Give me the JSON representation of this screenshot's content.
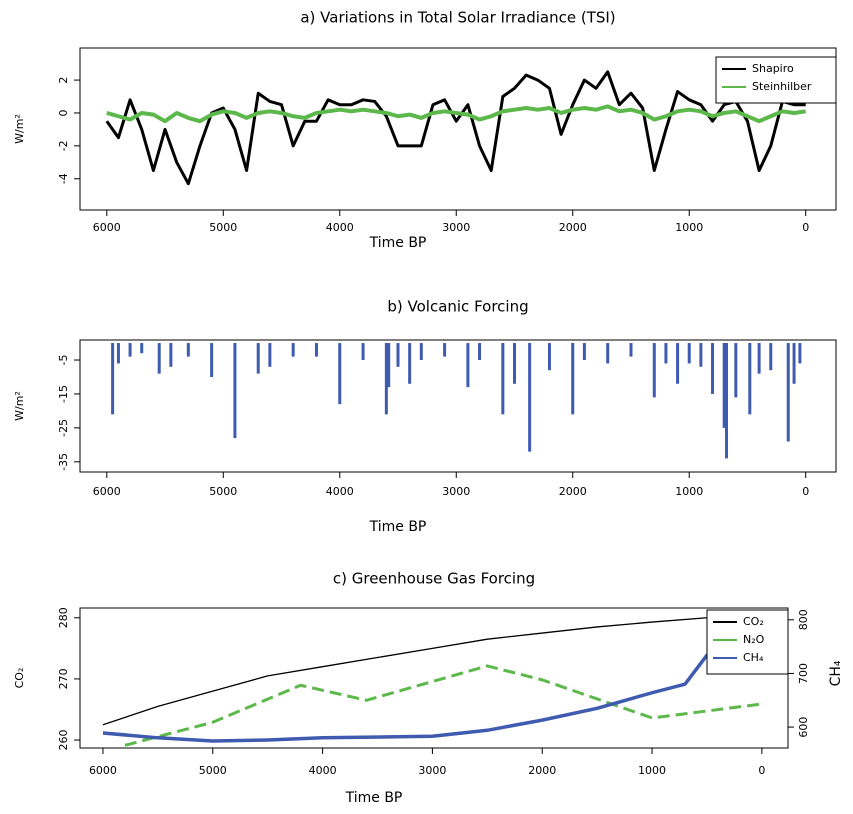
{
  "chart_data": [
    {
      "type": "line",
      "title": "a) Variations in Total Solar Irradiance (TSI)",
      "xlabel": "Time BP",
      "ylabel": "W/m²",
      "xlim": [
        6230,
        -260
      ],
      "ylim": [
        -5.9,
        3.95
      ],
      "xticks": [
        6000,
        5000,
        4000,
        3000,
        2000,
        1000,
        0
      ],
      "yticks": [
        -4,
        -2,
        0,
        2
      ],
      "legend": "upper right",
      "x": [
        6000,
        5900,
        5800,
        5700,
        5600,
        5500,
        5400,
        5300,
        5200,
        5100,
        5000,
        4900,
        4800,
        4700,
        4600,
        4500,
        4400,
        4300,
        4200,
        4100,
        4000,
        3900,
        3800,
        3700,
        3600,
        3500,
        3400,
        3300,
        3200,
        3100,
        3000,
        2900,
        2800,
        2700,
        2600,
        2500,
        2400,
        2300,
        2200,
        2100,
        2000,
        1900,
        1800,
        1700,
        1600,
        1500,
        1400,
        1300,
        1200,
        1100,
        1000,
        900,
        800,
        700,
        600,
        500,
        400,
        300,
        200,
        100,
        0
      ],
      "series": [
        {
          "name": "Shapiro",
          "color": "#000000",
          "values": [
            -0.5,
            -1.5,
            0.8,
            -1,
            -3.5,
            -1,
            -3,
            -4.3,
            -2,
            0,
            0.3,
            -1,
            -3.5,
            1.2,
            0.7,
            0.5,
            -2,
            -0.5,
            -0.5,
            0.8,
            0.5,
            0.5,
            0.8,
            0.7,
            -0.2,
            -2,
            -2,
            -2,
            0.5,
            0.8,
            -0.5,
            0.5,
            -2,
            -3.5,
            1,
            1.5,
            2.3,
            2,
            1.5,
            -1.3,
            0.5,
            2,
            1.5,
            2.5,
            0.5,
            1.2,
            0.3,
            -3.5,
            -1,
            1.3,
            0.8,
            0.5,
            -0.5,
            0.5,
            0.7,
            -0.5,
            -3.5,
            -2,
            0.7,
            0.5,
            0.5
          ]
        },
        {
          "name": "Steinhilber",
          "color": "#5cb84a",
          "values": [
            0,
            -0.2,
            -0.4,
            0,
            -0.1,
            -0.5,
            0,
            -0.3,
            -0.5,
            -0.1,
            0.1,
            0,
            -0.3,
            0,
            0.1,
            0,
            -0.2,
            -0.3,
            0,
            0.1,
            0.2,
            0.1,
            0.2,
            0.1,
            0,
            -0.2,
            -0.1,
            -0.3,
            0,
            0.1,
            0,
            -0.1,
            -0.4,
            -0.2,
            0.1,
            0.2,
            0.3,
            0.2,
            0.3,
            0,
            0.2,
            0.3,
            0.2,
            0.4,
            0.1,
            0.2,
            0,
            -0.4,
            -0.2,
            0.1,
            0.2,
            0.1,
            -0.2,
            0,
            0.1,
            -0.2,
            -0.5,
            -0.2,
            0.1,
            0,
            0.1
          ]
        }
      ]
    },
    {
      "type": "bar",
      "title": "b) Volcanic Forcing",
      "xlabel": "Time BP",
      "ylabel": "W/m²",
      "color": "#3f5bb0",
      "xlim": [
        6230,
        -260
      ],
      "ylim": [
        -38,
        0.9
      ],
      "xticks": [
        6000,
        5000,
        4000,
        3000,
        2000,
        1000,
        0
      ],
      "yticks": [
        -5,
        -15,
        -25,
        -35
      ],
      "x": [
        5950,
        5900,
        5800,
        5700,
        5550,
        5450,
        5300,
        5100,
        4900,
        4700,
        4600,
        4400,
        4200,
        4000,
        3800,
        3600,
        3580,
        3500,
        3400,
        3300,
        3100,
        2900,
        2800,
        2600,
        2500,
        2370,
        2200,
        2000,
        1900,
        1700,
        1500,
        1300,
        1200,
        1100,
        1000,
        900,
        800,
        700,
        680,
        600,
        480,
        400,
        300,
        150,
        100,
        50
      ],
      "values": [
        -21,
        -6,
        -4,
        -3,
        -9,
        -7,
        -4,
        -10,
        -28,
        -9,
        -7,
        -4,
        -4,
        -18,
        -5,
        -21,
        -13,
        -7,
        -12,
        -5,
        -4,
        -13,
        -5,
        -21,
        -12,
        -32,
        -8,
        -21,
        -5,
        -6,
        -4,
        -16,
        -6,
        -12,
        -6,
        -7,
        -15,
        -25,
        -34,
        -16,
        -21,
        -9,
        -8,
        -29,
        -12,
        -6
      ]
    },
    {
      "type": "line",
      "title": "c) Greenhouse Gas Forcing",
      "xlabel": "Time BP",
      "ylabel": "CO₂",
      "y2label": "CH₄",
      "legend": "upper right",
      "xlim": [
        6209,
        -238
      ],
      "ylim": [
        258.7,
        281.6
      ],
      "yticks": [
        260,
        270,
        280
      ],
      "y2lim": [
        561,
        822
      ],
      "y2ticks": [
        600,
        700,
        800
      ],
      "xticks": [
        6000,
        5000,
        4000,
        3000,
        2000,
        1000,
        0
      ],
      "series": [
        {
          "name": "CO₂",
          "color": "#000000",
          "x": [
            6000,
            5500,
            5000,
            4500,
            4000,
            3500,
            3000,
            2500,
            2000,
            1500,
            1000,
            500,
            200,
            0
          ],
          "values": [
            262.5,
            265.5,
            268,
            270.5,
            272,
            273.5,
            275,
            276.5,
            277.5,
            278.5,
            279.3,
            280,
            281,
            280.8
          ]
        },
        {
          "name": "N₂O",
          "color": "#5cb84a",
          "axis": "y2",
          "linestyle": "dashed",
          "x": [
            5800,
            5000,
            4200,
            3600,
            2500,
            2000,
            1000,
            0
          ],
          "values": [
            566,
            609,
            678,
            650,
            714,
            688,
            617,
            643
          ]
        },
        {
          "name": "CH₄",
          "color": "#3f5bb0",
          "axis": "y2",
          "x": [
            6000,
            5500,
            5000,
            4500,
            4000,
            3000,
            2500,
            2000,
            1500,
            1000,
            700,
            500,
            200,
            0
          ],
          "values": [
            589,
            580,
            574,
            576,
            580,
            583,
            594,
            613,
            635,
            664,
            680,
            734,
            781,
            815
          ]
        }
      ]
    }
  ]
}
